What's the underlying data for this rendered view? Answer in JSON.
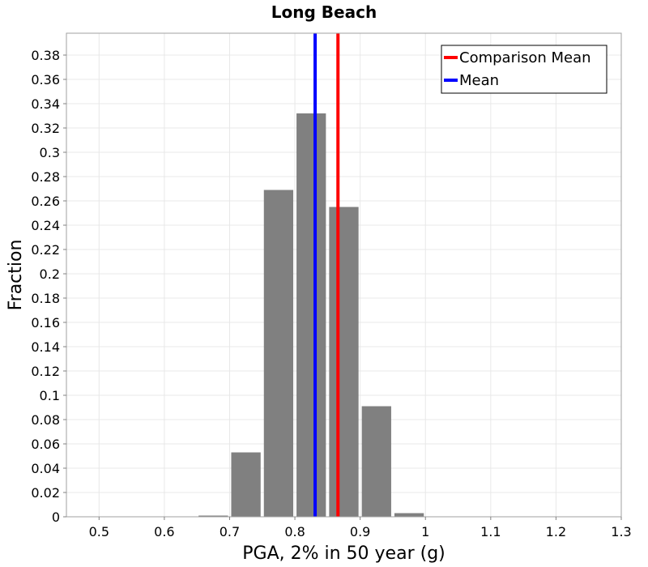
{
  "chart_data": {
    "type": "bar",
    "title": "Long Beach",
    "xlabel": "PGA, 2% in 50 year (g)",
    "ylabel": "Fraction",
    "xlim": [
      0.45,
      1.3
    ],
    "ylim": [
      0,
      0.398
    ],
    "x_ticks": [
      0.5,
      0.6,
      0.7,
      0.8,
      0.9,
      1,
      1.1,
      1.2,
      1.3
    ],
    "x_tick_labels": [
      "0.5",
      "0.6",
      "0.7",
      "0.8",
      "0.9",
      "1",
      "1.1",
      "1.2",
      "1.3"
    ],
    "y_ticks": [
      0,
      0.02,
      0.04,
      0.06,
      0.08,
      0.1,
      0.12,
      0.14,
      0.16,
      0.18,
      0.2,
      0.22,
      0.24,
      0.26,
      0.28,
      0.3,
      0.32,
      0.34,
      0.36,
      0.38
    ],
    "y_tick_labels": [
      "0",
      "0.02",
      "0.04",
      "0.06",
      "0.08",
      "0.1",
      "0.12",
      "0.14",
      "0.16",
      "0.18",
      "0.2",
      "0.22",
      "0.24",
      "0.26",
      "0.28",
      "0.3",
      "0.32",
      "0.34",
      "0.36",
      "0.38"
    ],
    "grid": true,
    "bin_width": 0.05,
    "bars": [
      {
        "x_start": 0.45,
        "value": 0
      },
      {
        "x_start": 0.5,
        "value": 0
      },
      {
        "x_start": 0.55,
        "value": 0
      },
      {
        "x_start": 0.6,
        "value": 0
      },
      {
        "x_start": 0.65,
        "value": 0.001
      },
      {
        "x_start": 0.7,
        "value": 0.053
      },
      {
        "x_start": 0.75,
        "value": 0.269
      },
      {
        "x_start": 0.8,
        "value": 0.332
      },
      {
        "x_start": 0.85,
        "value": 0.255
      },
      {
        "x_start": 0.9,
        "value": 0.091
      },
      {
        "x_start": 0.95,
        "value": 0.003
      },
      {
        "x_start": 1.0,
        "value": 0
      },
      {
        "x_start": 1.05,
        "value": 0
      },
      {
        "x_start": 1.1,
        "value": 0
      },
      {
        "x_start": 1.15,
        "value": 0
      },
      {
        "x_start": 1.2,
        "value": 0
      },
      {
        "x_start": 1.25,
        "value": 0
      }
    ],
    "bar_color": "#808080",
    "vlines": [
      {
        "name": "Comparison Mean",
        "x": 0.866,
        "color": "#ff0000"
      },
      {
        "name": "Mean",
        "x": 0.831,
        "color": "#0000ff"
      }
    ],
    "legend_position": "top-right"
  }
}
